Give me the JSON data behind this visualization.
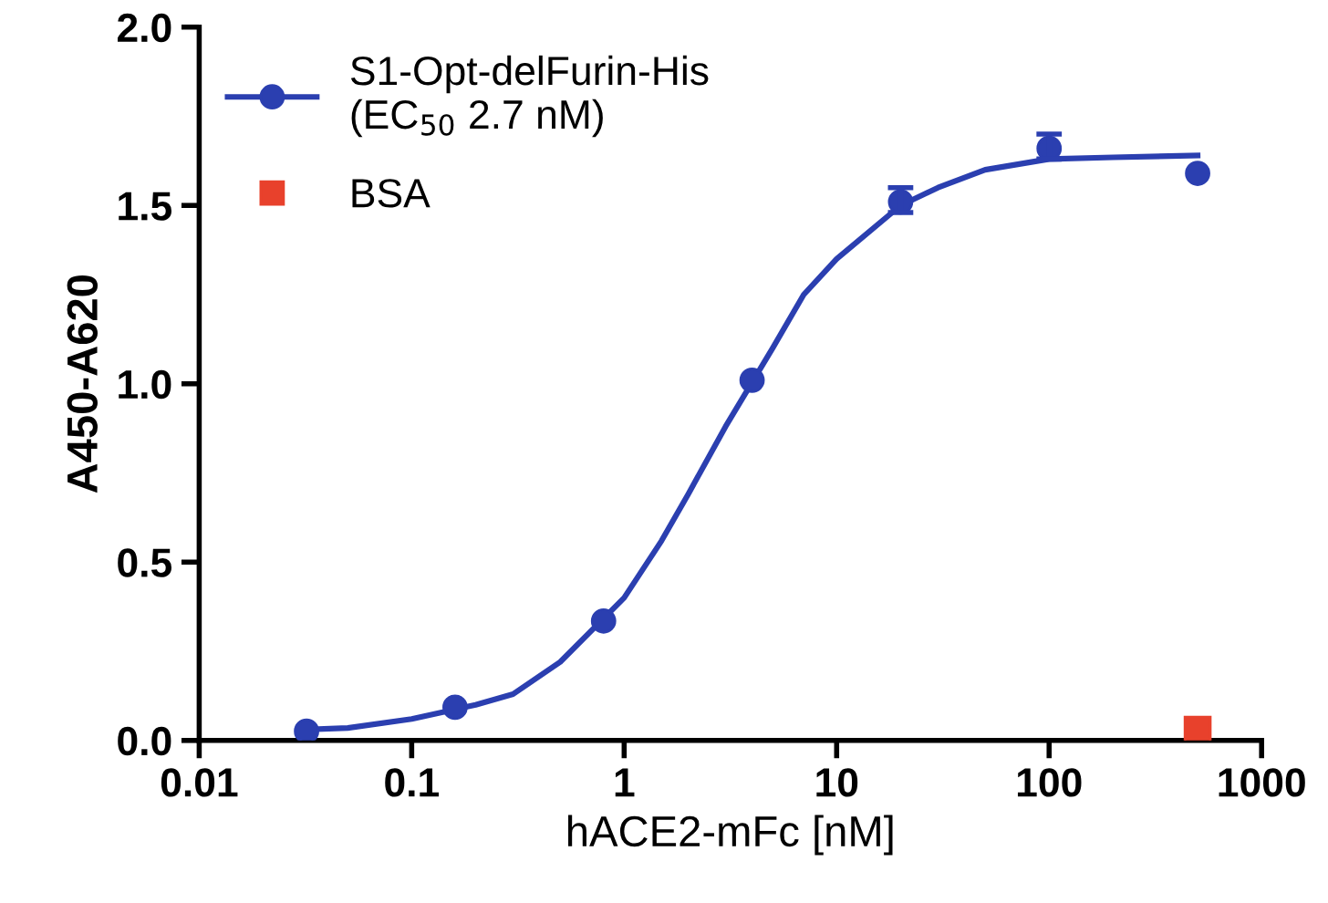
{
  "chart_data": {
    "type": "scatter",
    "xlabel": "hACE2-mFc [nM]",
    "ylabel": "A450-A620",
    "log": "x",
    "xlim": [
      0.01,
      1000
    ],
    "xticks": [
      0.01,
      0.1,
      1,
      10,
      100,
      1000
    ],
    "ylim": [
      0,
      2.0
    ],
    "yticks": [
      {
        "value": 0,
        "label": "0.0"
      },
      {
        "value": 0.5,
        "label": "0.5"
      },
      {
        "value": 1.0,
        "label": "1.0"
      },
      {
        "value": 1.5,
        "label": "1.5"
      },
      {
        "value": 2.0,
        "label": "2.0"
      }
    ],
    "grid": false,
    "legend": "top left",
    "series": [
      {
        "name": "S1-Opt-delFurin-His\n(EC$_{50}$ 2.7 nM)",
        "marker": "circle",
        "color": "#2b3fb0",
        "x": [
          0.032,
          0.16,
          0.8,
          4,
          20,
          100,
          500
        ],
        "values": [
          0.026,
          0.093,
          0.335,
          1.01,
          1.51,
          1.66,
          1.59
        ],
        "errors": [
          null,
          null,
          null,
          null,
          [
            1.48,
            1.55
          ],
          [
            1.63,
            1.7
          ],
          null
        ]
      },
      {
        "type": "line",
        "marker": "none",
        "line_style": "solid",
        "color": "#2b3fb0",
        "x": [
          0.03,
          0.05,
          0.1,
          0.2,
          0.3,
          0.5,
          1,
          1.5,
          2,
          3,
          5,
          7,
          10,
          20,
          30,
          50,
          100,
          200,
          500
        ],
        "values": [
          0.03,
          0.035,
          0.06,
          0.1,
          0.13,
          0.22,
          0.4,
          0.56,
          0.69,
          0.88,
          1.1,
          1.25,
          1.35,
          1.5,
          1.55,
          1.6,
          1.63,
          1.635,
          1.64
        ]
      },
      {
        "name": "BSA",
        "marker": "square",
        "color": "#e8412c",
        "x": [
          500
        ],
        "values": [
          0.03
        ]
      }
    ]
  }
}
